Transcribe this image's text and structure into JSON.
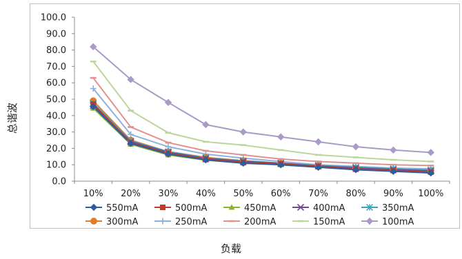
{
  "chart_data": {
    "type": "line",
    "title": "",
    "xlabel": "负载",
    "ylabel": "总谐波",
    "categories": [
      "10%",
      "20%",
      "30%",
      "40%",
      "50%",
      "60%",
      "70%",
      "80%",
      "90%",
      "100%"
    ],
    "yticks": [
      "0.0",
      "10.0",
      "20.0",
      "30.0",
      "40.0",
      "50.0",
      "60.0",
      "70.0",
      "80.0",
      "90.0",
      "100.0"
    ],
    "ylim": [
      0,
      100
    ],
    "grid": false,
    "legend": "bottom",
    "series": [
      {
        "name": "550mA",
        "color": "#2e5c9e",
        "marker": "diamond",
        "values": [
          45.5,
          23.0,
          16.5,
          13.0,
          11.0,
          10.0,
          8.5,
          7.0,
          6.0,
          5.0
        ]
      },
      {
        "name": "500mA",
        "color": "#c0392b",
        "marker": "square",
        "values": [
          47.0,
          23.5,
          17.0,
          13.5,
          11.5,
          10.5,
          9.0,
          7.5,
          6.5,
          5.5
        ]
      },
      {
        "name": "450mA",
        "color": "#8db32b",
        "marker": "triangle",
        "values": [
          44.5,
          22.5,
          16.0,
          12.8,
          11.0,
          10.0,
          8.5,
          7.0,
          6.3,
          5.5
        ]
      },
      {
        "name": "400mA",
        "color": "#6f4a91",
        "marker": "x",
        "values": [
          46.0,
          24.0,
          17.5,
          13.8,
          12.0,
          10.8,
          9.2,
          8.0,
          7.0,
          6.2
        ]
      },
      {
        "name": "350mA",
        "color": "#3ba3bf",
        "marker": "asterisk",
        "values": [
          47.5,
          24.5,
          18.0,
          14.2,
          12.3,
          11.0,
          9.5,
          8.5,
          7.5,
          6.8
        ]
      },
      {
        "name": "300mA",
        "color": "#e07b27",
        "marker": "circle",
        "values": [
          49.0,
          25.0,
          18.0,
          14.5,
          12.5,
          11.0,
          9.5,
          8.0,
          7.0,
          6.5
        ]
      },
      {
        "name": "250mA",
        "color": "#8fb0dc",
        "marker": "plus",
        "values": [
          56.5,
          28.5,
          21.0,
          16.5,
          14.0,
          12.0,
          10.0,
          9.0,
          8.0,
          7.5
        ]
      },
      {
        "name": "200mA",
        "color": "#e3908d",
        "marker": "dash",
        "values": [
          63.0,
          33.0,
          23.5,
          18.5,
          16.0,
          13.5,
          12.0,
          11.0,
          10.0,
          9.5
        ]
      },
      {
        "name": "150mA",
        "color": "#bcd69a",
        "marker": "dash",
        "values": [
          73.0,
          43.0,
          29.5,
          24.0,
          22.0,
          19.0,
          16.0,
          14.5,
          13.0,
          12.0
        ]
      },
      {
        "name": "100mA",
        "color": "#a99ac8",
        "marker": "diamond",
        "values": [
          82.0,
          62.0,
          48.0,
          34.5,
          30.0,
          27.0,
          24.0,
          21.0,
          19.0,
          17.5
        ]
      }
    ]
  }
}
